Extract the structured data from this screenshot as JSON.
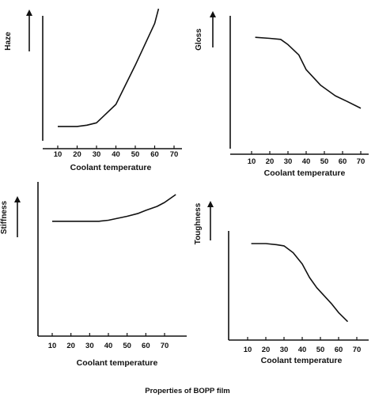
{
  "caption": "Properties of BOPP film",
  "chart_data": [
    {
      "type": "line",
      "ylabel": "Haze",
      "xlabel": "Coolant temperature",
      "categories": [
        "10",
        "20",
        "30",
        "40",
        "50",
        "60",
        "70"
      ],
      "xlim": [
        3,
        73
      ],
      "ylim": [
        0,
        100
      ],
      "grid": false,
      "series": [
        {
          "x": [
            10,
            20,
            25,
            30,
            40,
            50,
            60,
            62
          ],
          "y": [
            2,
            2,
            3,
            5,
            20,
            52,
            86,
            98
          ]
        }
      ]
    },
    {
      "type": "line",
      "ylabel": "Gloss",
      "xlabel": "Coolant temperature",
      "categories": [
        "10",
        "20",
        "30",
        "40",
        "50",
        "60",
        "70"
      ],
      "xlim": [
        3,
        73
      ],
      "ylim": [
        0,
        100
      ],
      "grid": false,
      "series": [
        {
          "x": [
            12,
            20,
            26,
            30,
            36,
            40,
            48,
            56,
            62,
            70
          ],
          "y": [
            87,
            86,
            85,
            80,
            70,
            56,
            41,
            31,
            26,
            19
          ]
        }
      ]
    },
    {
      "type": "line",
      "ylabel": "Stiffness",
      "xlabel": "Coolant temperature",
      "categories": [
        "10",
        "20",
        "30",
        "40",
        "50",
        "60",
        "70"
      ],
      "xlim": [
        3,
        76
      ],
      "ylim": [
        0,
        100
      ],
      "grid": false,
      "series": [
        {
          "x": [
            10,
            20,
            30,
            35,
            40,
            45,
            50,
            56,
            60,
            66,
            70,
            76
          ],
          "y": [
            53,
            53,
            53,
            53,
            54,
            56,
            58,
            61,
            64,
            68,
            72,
            80
          ]
        }
      ]
    },
    {
      "type": "line",
      "ylabel": "Toughness",
      "xlabel": "Coolant temperature",
      "categories": [
        "10",
        "20",
        "30",
        "40",
        "50",
        "60",
        "70"
      ],
      "xlim": [
        3,
        73
      ],
      "ylim": [
        0,
        100
      ],
      "grid": false,
      "series": [
        {
          "x": [
            12,
            20,
            26,
            30,
            35,
            40,
            44,
            48,
            56,
            60,
            65
          ],
          "y": [
            86,
            86,
            85,
            84,
            78,
            68,
            56,
            47,
            33,
            25,
            17
          ]
        }
      ]
    }
  ]
}
